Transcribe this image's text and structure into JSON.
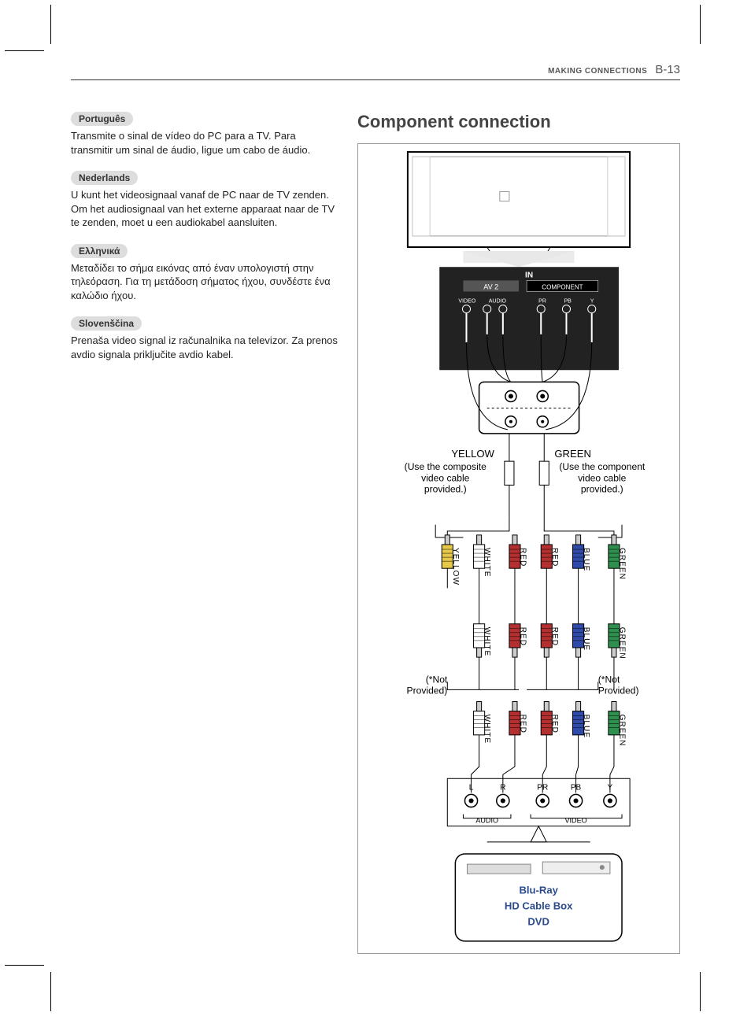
{
  "header": {
    "section": "MAKING CONNECTIONS",
    "page": "B-13"
  },
  "langs": [
    {
      "tag": "Português",
      "text": "Transmite o sinal de vídeo do PC para a TV. Para transmitir um sinal de áudio, ligue um cabo de áudio."
    },
    {
      "tag": "Nederlands",
      "text": "U kunt het videosignaal vanaf de PC naar de TV zenden. Om het audiosignaal van het externe apparaat naar de TV te zenden, moet u een audiokabel aansluiten."
    },
    {
      "tag": "Ελληνικά",
      "text": "Μεταδίδει το σήμα εικόνας από έναν υπολογιστή στην τηλεόραση. Για τη μετάδοση σήματος ήχου, συνδέστε ένα καλώδιο ήχου."
    },
    {
      "tag": "Slovenščina",
      "text": "Prenaša video signal iz računalnika na televizor. Za prenos avdio signala priključite avdio kabel."
    }
  ],
  "diagram": {
    "title": "Component connection",
    "tv_panel": {
      "in_label": "IN",
      "av2_label": "AV 2",
      "component_label": "COMPONENT",
      "jacks_left": {
        "video": "VIDEO",
        "audio": "AUDIO"
      },
      "jacks_right": [
        "PR",
        "PB",
        "Y"
      ]
    },
    "yellow_label": "YELLOW",
    "green_label": "GREEN",
    "use_left": "(Use the composite video cable provided.)",
    "use_right": "(Use the component video cable provided.)",
    "not_provided": "(*Not Provided)",
    "plug_row1": [
      "YELLOW",
      "WHITE",
      "RED",
      "RED",
      "BLUE",
      "GREEN"
    ],
    "plug_row23": [
      "WHITE",
      "RED",
      "RED",
      "BLUE",
      "GREEN"
    ],
    "back_jacks_top": [
      "L",
      "R",
      "PR",
      "PB",
      "Y"
    ],
    "back_jacks_bottom": {
      "audio": "AUDIO",
      "video": "VIDEO"
    },
    "devices": [
      "Blu-Ray",
      "HD Cable Box",
      "DVD"
    ],
    "colors": {
      "yellow": "#e6c94a",
      "white": "#f5f2e8",
      "red": "#b43030",
      "blue": "#2f4aa8",
      "green": "#2f8f4f",
      "black": "#000000",
      "gray_dark": "#222222",
      "gray_mid": "#888888",
      "gray_light": "#dddddd"
    }
  }
}
